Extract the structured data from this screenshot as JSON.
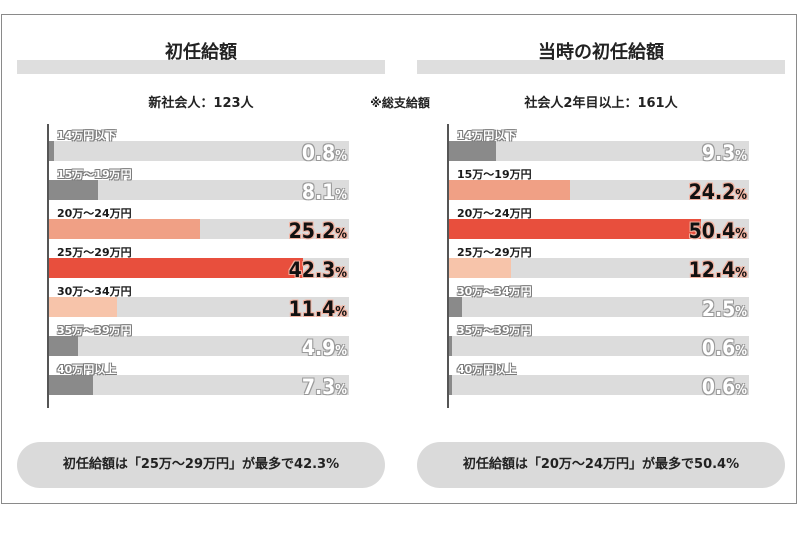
{
  "note": "※総支給額",
  "chart_data": [
    {
      "type": "bar",
      "title": "初任給額",
      "subtitle": "新社会人：123人",
      "categories": [
        "14万円以下",
        "15万～19万円",
        "20万～24万円",
        "25万～29万円",
        "30万～34万円",
        "35万～39万円",
        "40万円以上"
      ],
      "values": [
        0.8,
        8.1,
        25.2,
        42.3,
        11.4,
        4.9,
        7.3
      ],
      "value_labels": [
        "0.8",
        "8.1",
        "25.2",
        "42.3",
        "11.4",
        "4.9",
        "7.3"
      ],
      "unit": "%",
      "colors": [
        "#8a8a8a",
        "#8a8a8a",
        "#f0a085",
        "#e84f3d",
        "#f7c4aa",
        "#8a8a8a",
        "#8a8a8a"
      ],
      "highlight": [
        "muted",
        "muted",
        "hot",
        "hot",
        "hot",
        "muted",
        "muted"
      ],
      "xlim": [
        0,
        50
      ],
      "summary": "初任給額は「25万～29万円」が最多で42.3%"
    },
    {
      "type": "bar",
      "title": "当時の初任給額",
      "subtitle": "社会人2年目以上：161人",
      "categories": [
        "14万円以下",
        "15万～19万円",
        "20万～24万円",
        "25万～29万円",
        "30万～34万円",
        "35万～39万円",
        "40万円以上"
      ],
      "values": [
        9.3,
        24.2,
        50.4,
        12.4,
        2.5,
        0.6,
        0.6
      ],
      "value_labels": [
        "9.3",
        "24.2",
        "50.4",
        "12.4",
        "2.5",
        "0.6",
        "0.6"
      ],
      "unit": "%",
      "colors": [
        "#8a8a8a",
        "#f0a085",
        "#e84f3d",
        "#f7c4aa",
        "#8a8a8a",
        "#8a8a8a",
        "#8a8a8a"
      ],
      "highlight": [
        "muted",
        "hot",
        "hot",
        "hot",
        "muted",
        "muted",
        "muted"
      ],
      "xlim": [
        0,
        60
      ],
      "summary": "初任給額は「20万～24万円」が最多で50.4%"
    }
  ]
}
